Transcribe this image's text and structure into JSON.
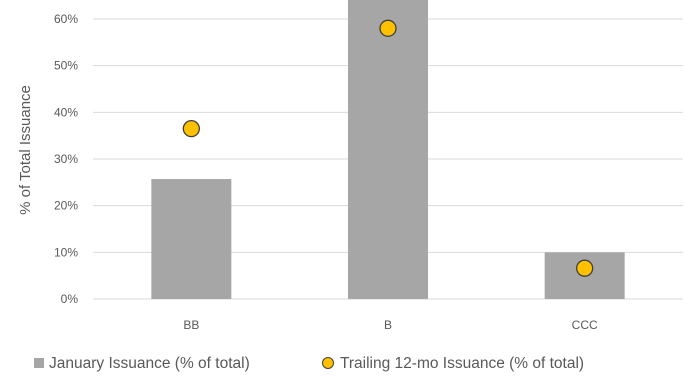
{
  "chart_data": {
    "type": "bar",
    "categories": [
      "BB",
      "B",
      "CCC"
    ],
    "series": [
      {
        "name": "January Issuance (% of total)",
        "kind": "bar",
        "values": [
          25.7,
          66.0,
          10.0
        ]
      },
      {
        "name": "Trailing 12-mo Issuance (% of total)",
        "kind": "marker",
        "values": [
          36.5,
          58.0,
          6.6
        ]
      }
    ],
    "yticks": [
      "0%",
      "10%",
      "20%",
      "30%",
      "40%",
      "50%",
      "60%"
    ],
    "ylabel": "% of Total Issuance",
    "xlabel": "",
    "ylim": [
      0,
      64
    ],
    "grid": true,
    "legend_position": "bottom",
    "colors": {
      "bar": "#a6a6a6",
      "marker_fill": "#ffc000",
      "marker_stroke": "#404040",
      "grid": "#d9d9d9",
      "text": "#595959"
    }
  }
}
